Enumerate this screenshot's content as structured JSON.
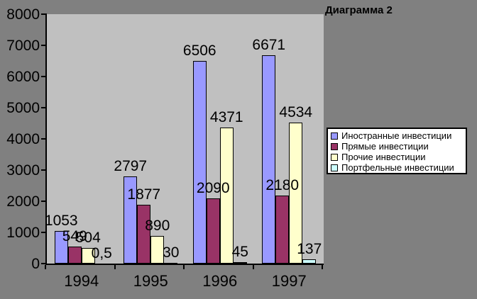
{
  "title": "Диаграмма 2",
  "colors": {
    "background": "#808080",
    "plot_background": "#C0C0C0",
    "axis": "#000000",
    "legend_background": "#FFFFFF",
    "text": "#000000"
  },
  "chart_data": {
    "type": "bar",
    "title": "Диаграмма 2",
    "categories": [
      "1994",
      "1995",
      "1996",
      "1997"
    ],
    "series": [
      {
        "name": "Иностранные инвестиции",
        "color": "#9999FF",
        "values": [
          1053,
          2797,
          6506,
          6671
        ],
        "labels": [
          "1053",
          "2797",
          "6506",
          "6671"
        ]
      },
      {
        "name": "Прямые инвестиции",
        "color": "#993366",
        "values": [
          549,
          1877,
          2090,
          2180
        ],
        "labels": [
          "549",
          "1877",
          "2090",
          "2180"
        ]
      },
      {
        "name": "Прочие инвестиции",
        "color": "#FFFFCC",
        "values": [
          504,
          890,
          4371,
          4534
        ],
        "labels": [
          "504",
          "890",
          "4371",
          "4534"
        ]
      },
      {
        "name": "Портфельные инвестиции",
        "color": "#CCFFFF",
        "values": [
          0.5,
          30,
          45,
          137
        ],
        "labels": [
          "0,5",
          "30",
          "45",
          "137"
        ]
      }
    ],
    "ylim": [
      0,
      8000
    ],
    "ytick_step": 1000,
    "ytick_labels": [
      "0",
      "1000",
      "2000",
      "3000",
      "4000",
      "5000",
      "6000",
      "7000",
      "8000"
    ],
    "grid": false,
    "legend_position": "right",
    "data_labels": "outside-end",
    "xlabel": "",
    "ylabel": ""
  }
}
